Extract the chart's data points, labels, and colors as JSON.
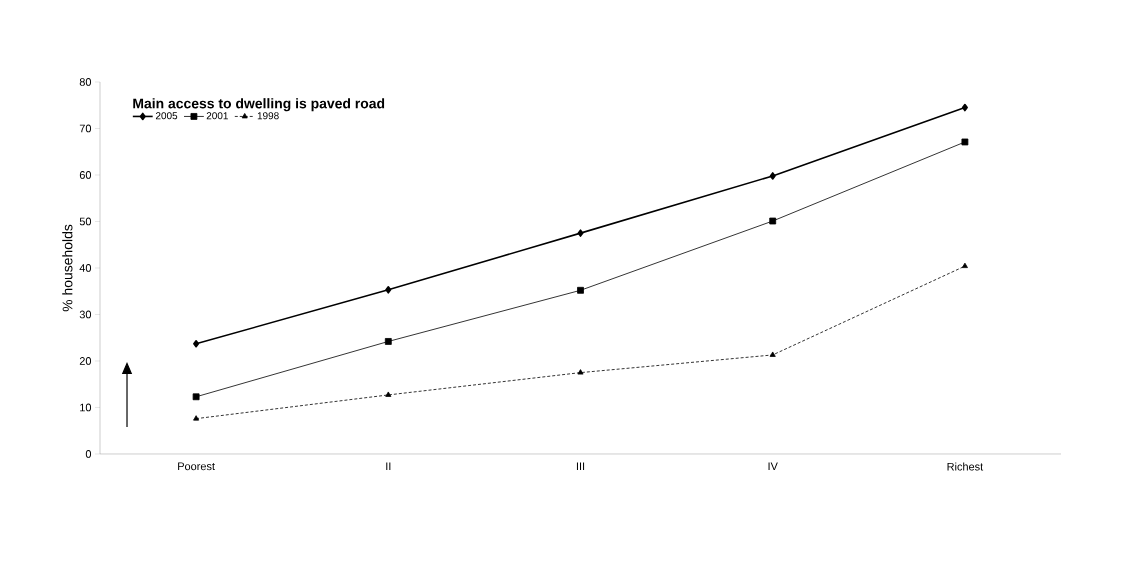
{
  "chart_data": {
    "type": "line",
    "title": "Main access to dwelling is paved road",
    "ylabel": "% households",
    "categories": [
      "Poorest",
      "II",
      "III",
      "IV",
      "Richest"
    ],
    "series": [
      {
        "name": "2005",
        "color": "#000000",
        "values": [
          23.7,
          35.3,
          47.5,
          59.8,
          74.5
        ],
        "marker": "diamond",
        "line_style": "solid"
      },
      {
        "name": "2001",
        "color": "#000000",
        "values": [
          12.3,
          24.2,
          35.2,
          50.1,
          67.1
        ],
        "marker": "square",
        "line_style": "solid"
      },
      {
        "name": "1998",
        "color": "#000000",
        "values": [
          7.6,
          12.7,
          17.5,
          21.3,
          40.4
        ],
        "marker": "triangle",
        "line_style": "dotted"
      }
    ],
    "ylim": [
      0,
      80
    ],
    "yticks": [
      0,
      10,
      20,
      30,
      40,
      50,
      60,
      70,
      80
    ],
    "grid": false,
    "legend": "top left"
  }
}
